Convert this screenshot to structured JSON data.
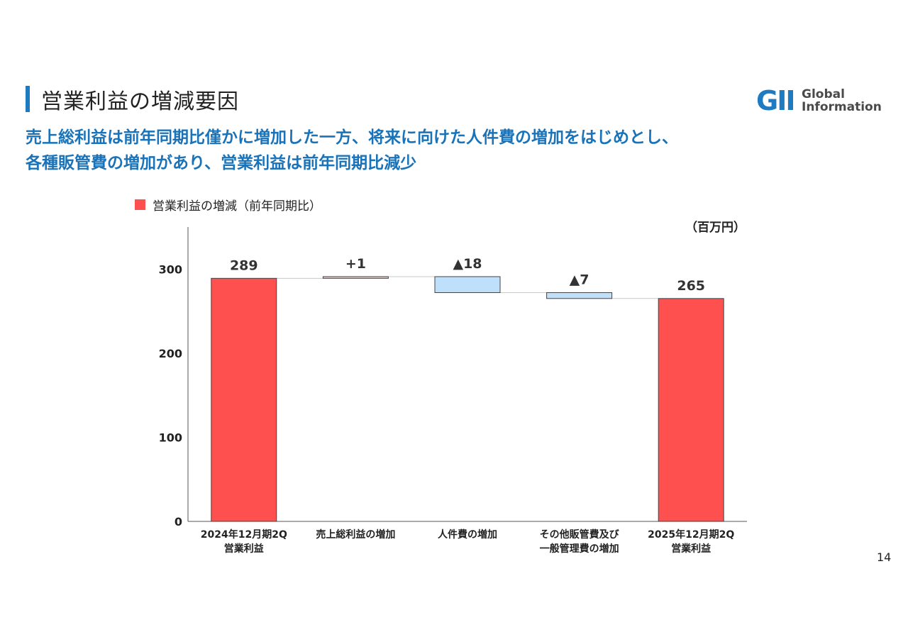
{
  "header": {
    "title": "営業利益の増減要因",
    "logo_mark": "GII",
    "logo_line1": "Global",
    "logo_line2": "Information"
  },
  "subtitle": {
    "line1": "売上総利益は前年同期比僅かに増加した一方、将来に向けた人件費の増加をはじめとし、",
    "line2": "各種販管費の増加があり、営業利益は前年同期比減少"
  },
  "legend": {
    "label": "営業利益の増減（前年同期比）",
    "color": "#ff5050"
  },
  "unit": "（百万円）",
  "page_number": "14",
  "chart_data": {
    "type": "bar",
    "subtype": "waterfall",
    "ylim": [
      0,
      350
    ],
    "yticks": [
      0,
      100,
      200,
      300
    ],
    "steps": [
      {
        "label_lines": [
          "2024年12月期2Q",
          "営業利益"
        ],
        "kind": "total",
        "start": 0,
        "end": 289,
        "display": "289",
        "color": "#ff5050"
      },
      {
        "label_lines": [
          "売上総利益の増加"
        ],
        "kind": "increase",
        "start": 289,
        "end": 291,
        "display": "+1",
        "color": "#f4cccc"
      },
      {
        "label_lines": [
          "人件費の増加"
        ],
        "kind": "decrease",
        "start": 291,
        "end": 272,
        "display": "▲18",
        "color": "#bfe0fb"
      },
      {
        "label_lines": [
          "その他販管費及び",
          "一般管理費の増加"
        ],
        "kind": "decrease",
        "start": 272,
        "end": 265,
        "display": "▲7",
        "color": "#bfe0fb"
      },
      {
        "label_lines": [
          "2025年12月期2Q",
          "営業利益"
        ],
        "kind": "total",
        "start": 0,
        "end": 265,
        "display": "265",
        "color": "#ff5050"
      }
    ]
  }
}
